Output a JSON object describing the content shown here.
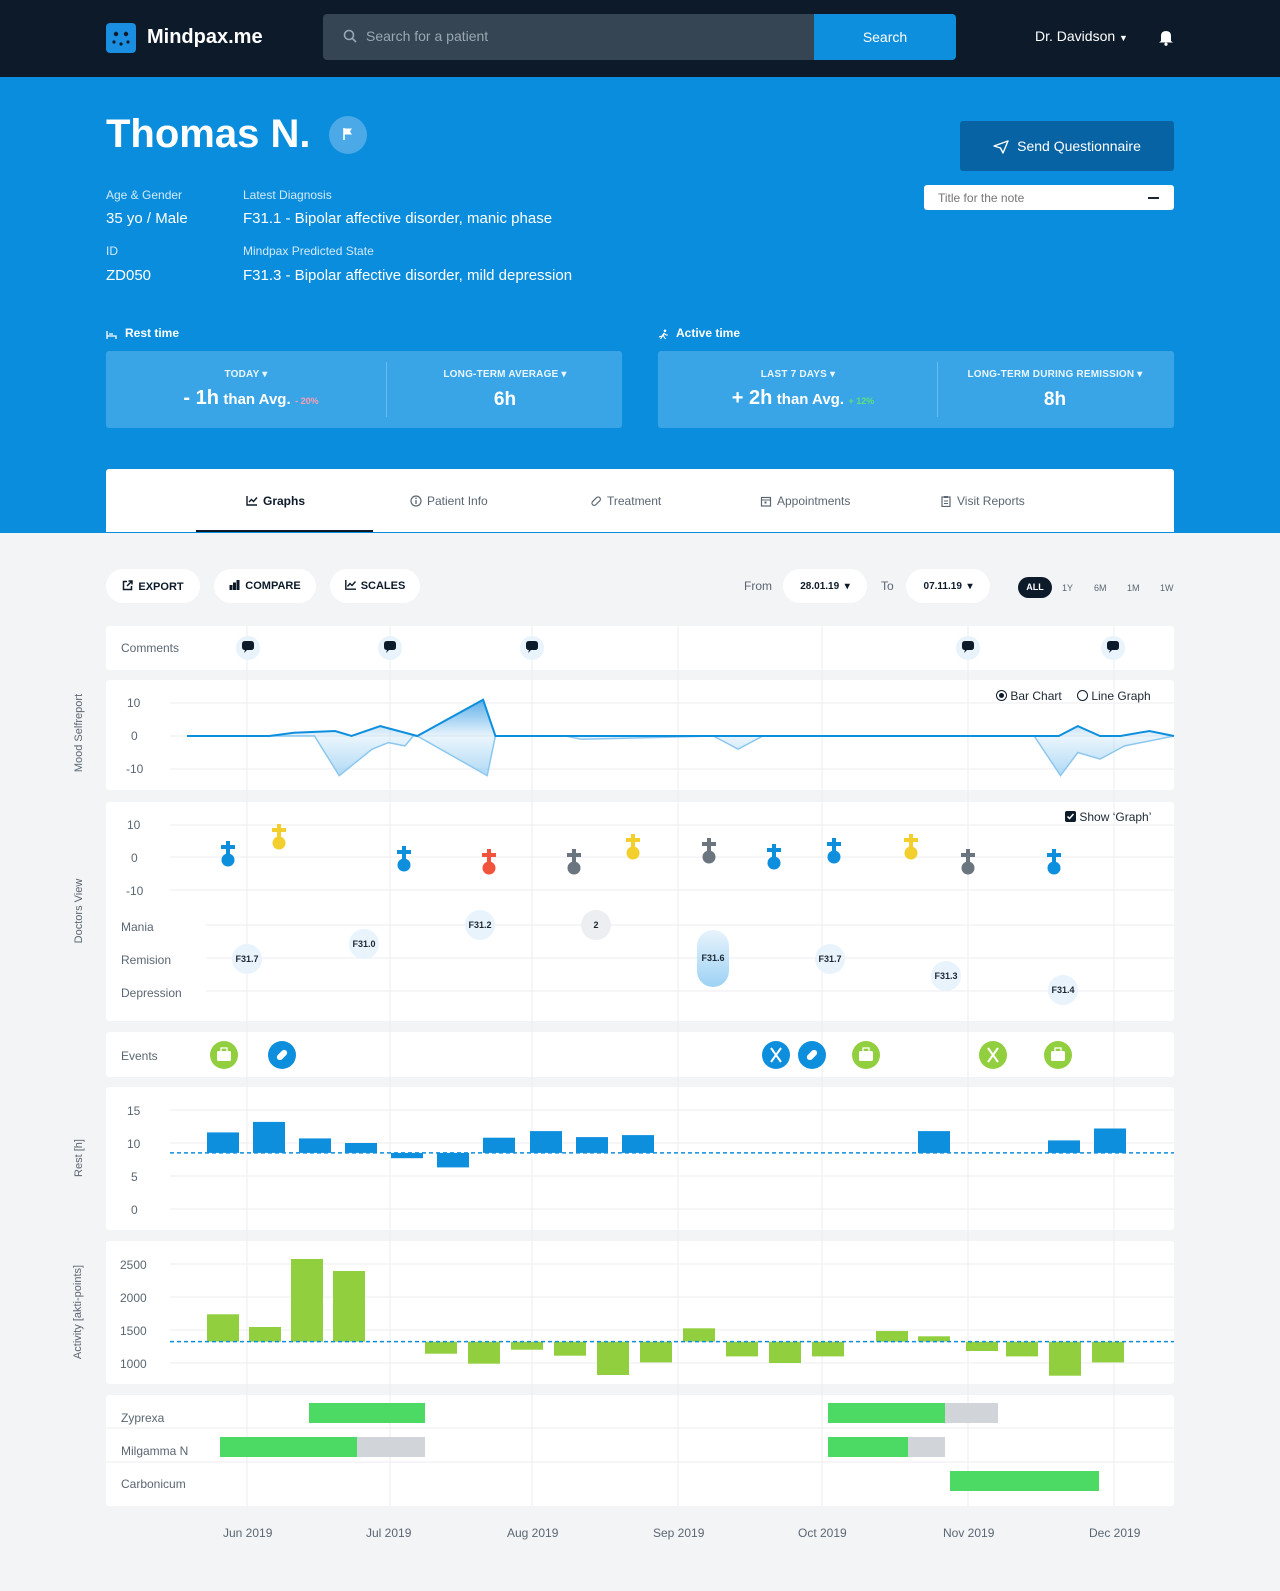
{
  "app": {
    "name": "Mindpax.me"
  },
  "search": {
    "placeholder": "Search for a patient",
    "button": "Search"
  },
  "user": {
    "name": "Dr. Davidson"
  },
  "patient": {
    "name": "Thomas N.",
    "age_gender_label": "Age & Gender",
    "age_gender": "35 yo / Male",
    "id_label": "ID",
    "id": "ZD050",
    "diagnosis_label": "Latest Diagnosis",
    "diagnosis": "F31.1 - Bipolar affective disorder, manic phase",
    "predicted_label": "Mindpax Predicted State",
    "predicted": "F31.3 - Bipolar affective disorder, mild depression"
  },
  "actions": {
    "send_questionnaire": "Send Questionnaire",
    "note_placeholder": "Title for the note"
  },
  "rest_time": {
    "title": "Rest time",
    "left_label": "TODAY",
    "left_value": "- 1h",
    "left_suffix": "than Avg.",
    "left_delta": "- 20%",
    "right_label": "LONG-TERM AVERAGE",
    "right_value": "6h"
  },
  "active_time": {
    "title": "Active time",
    "left_label": "LAST 7 DAYS",
    "left_value": "+ 2h",
    "left_suffix": "than Avg.",
    "left_delta": "+ 12%",
    "right_label": "LONG-TERM DURING REMISSION",
    "right_value": "8h"
  },
  "tabs": [
    {
      "label": "Graphs"
    },
    {
      "label": "Patient Info"
    },
    {
      "label": "Treatment"
    },
    {
      "label": "Appointments"
    },
    {
      "label": "Visit Reports"
    }
  ],
  "toolbar": {
    "export": "EXPORT",
    "compare": "COMPARE",
    "scales": "SCALES",
    "from_label": "From",
    "from_value": "28.01.19",
    "to_label": "To",
    "to_value": "07.11.19"
  },
  "ranges": [
    "ALL",
    "1Y",
    "6M",
    "1M",
    "1W"
  ],
  "comments": {
    "label": "Comments"
  },
  "mood": {
    "axis_title": "Mood Selfreport",
    "ticks": [
      "10",
      "0",
      "-10"
    ],
    "bar_chart": "Bar Chart",
    "line_graph": "Line Graph"
  },
  "doctors": {
    "axis_title": "Doctors View",
    "ticks": [
      "10",
      "0",
      "-10"
    ],
    "show_graph": "Show ‘Graph’",
    "states": [
      "Mania",
      "Remision",
      "Depression"
    ],
    "diagnoses": [
      {
        "code": "F31.7",
        "state": "Remision"
      },
      {
        "code": "F31.0",
        "state": "Remision"
      },
      {
        "code": "F31.2",
        "state": "Mania"
      },
      {
        "code": "2",
        "state": "Mania"
      },
      {
        "code": "F31.6",
        "state": "Remision"
      },
      {
        "code": "F31.7",
        "state": "Remision"
      },
      {
        "code": "F31.3",
        "state": "Depression"
      },
      {
        "code": "F31.4",
        "state": "Depression"
      }
    ]
  },
  "events": {
    "label": "Events"
  },
  "rest_chart": {
    "axis_title": "Rest [h]",
    "ticks": [
      "15",
      "10",
      "5",
      "0"
    ]
  },
  "activity_chart": {
    "axis_title": "Activity [akti-points]",
    "ticks": [
      "2500",
      "2000",
      "1500",
      "1000"
    ]
  },
  "medications": [
    "Zyprexa",
    "Milgamma N",
    "Carbonicum"
  ],
  "months": [
    "Jun 2019",
    "Jul 2019",
    "Aug 2019",
    "Sep 2019",
    "Oct 2019",
    "Nov 2019",
    "Dec 2019"
  ],
  "colors": {
    "navy": "#0d1a2a",
    "blue": "#0a8ddc",
    "bar_blue": "#0e8fde",
    "green": "#92cf3f",
    "med_green": "#4cd964",
    "grey": "#d1d5da"
  },
  "chart_data": [
    {
      "type": "line",
      "title": "Mood Selfreport",
      "ylim": [
        -12,
        12
      ],
      "ylabel": "Mood Selfreport",
      "series": [
        {
          "x": [
            0,
            100,
            130,
            180,
            200,
            235,
            280,
            360,
            375,
            405,
            1030,
            1060,
            1083,
            1110,
            1135,
            1170,
            1200
          ],
          "values": [
            0,
            0,
            1,
            1.5,
            0,
            3,
            0,
            11,
            0,
            0,
            0,
            0,
            3,
            0,
            0,
            1.5,
            0
          ]
        },
        {
          "x": [
            0,
            155,
            185,
            225,
            245,
            265,
            275,
            280,
            365,
            375,
            400,
            460,
            480,
            640,
            670,
            700,
            1030,
            1062,
            1083,
            1110,
            1140,
            1200
          ],
          "values": [
            0,
            0,
            -12,
            -4,
            -2,
            -3,
            0,
            0,
            -12,
            0,
            0,
            0,
            -1,
            0,
            -4,
            0,
            0,
            -12,
            -5,
            -7,
            -3,
            0
          ]
        }
      ]
    },
    {
      "type": "bar",
      "title": "Rest [h]",
      "ylim": [
        0,
        15
      ],
      "ylabel": "Rest [h]",
      "baseline": 8.5,
      "x": [
        0,
        1,
        2,
        3,
        4,
        5,
        6,
        7,
        8,
        9,
        16,
        18,
        19
      ],
      "values": [
        11.6,
        13.2,
        10.7,
        10.0,
        7.7,
        6.3,
        10.8,
        11.8,
        10.9,
        11.2,
        11.8,
        10.4,
        12.2
      ]
    },
    {
      "type": "bar",
      "title": "Activity [akti-points]",
      "ylim": [
        700,
        2700
      ],
      "ylabel": "Activity [akti-points]",
      "baseline": 1320,
      "values": [
        1730,
        1540,
        2560,
        2380,
        1140,
        990,
        1200,
        1110,
        820,
        1010,
        1520,
        1100,
        1000,
        1100,
        1480,
        1400,
        1180,
        1100,
        810,
        1010
      ]
    }
  ]
}
